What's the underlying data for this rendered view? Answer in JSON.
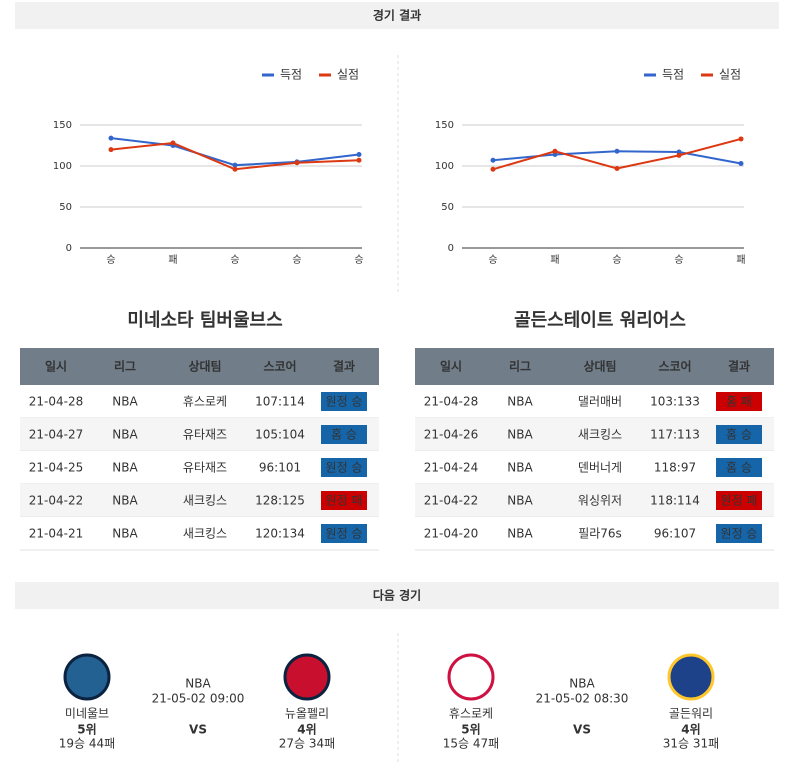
{
  "results": {
    "title": "경기 결과",
    "panels": [
      {
        "team": "미네소타 팀버울브스",
        "chart": {
          "type": "line",
          "categories": [
            "승",
            "패",
            "승",
            "승",
            "승"
          ],
          "series": [
            {
              "name": "득점",
              "color": "#3366cc",
              "values": [
                134,
                125,
                101,
                105,
                114
              ]
            },
            {
              "name": "실점",
              "color": "#dc3912",
              "values": [
                120,
                128,
                96,
                104,
                107
              ]
            }
          ],
          "ylim": [
            0,
            150
          ],
          "yticks": [
            0,
            50,
            100,
            150
          ],
          "grid": true
        },
        "table": {
          "header": [
            "일시",
            "리그",
            "상대팀",
            "스코어",
            "결과"
          ],
          "rows": [
            [
              "21-04-28",
              "NBA",
              "휴스로케",
              "107:114",
              "원정 승"
            ],
            [
              "21-04-27",
              "NBA",
              "유타재즈",
              "105:104",
              "홈 승"
            ],
            [
              "21-04-25",
              "NBA",
              "유타재즈",
              "96:101",
              "원정 승"
            ],
            [
              "21-04-22",
              "NBA",
              "새크킹스",
              "128:125",
              "원정 패"
            ],
            [
              "21-04-21",
              "NBA",
              "새크킹스",
              "120:134",
              "원정 승"
            ]
          ],
          "result_colors": [
            "#1565a8",
            "#1565a8",
            "#1565a8",
            "#cc0000",
            "#1565a8"
          ]
        }
      },
      {
        "team": "골든스테이트 워리어스",
        "chart": {
          "type": "line",
          "categories": [
            "승",
            "패",
            "승",
            "승",
            "패"
          ],
          "series": [
            {
              "name": "득점",
              "color": "#3366cc",
              "values": [
                107,
                114,
                118,
                117,
                103
              ]
            },
            {
              "name": "실점",
              "color": "#dc3912",
              "values": [
                96,
                118,
                97,
                113,
                133
              ]
            }
          ],
          "ylim": [
            0,
            150
          ],
          "yticks": [
            0,
            50,
            100,
            150
          ],
          "grid": true
        },
        "table": {
          "header": [
            "일시",
            "리그",
            "상대팀",
            "스코어",
            "결과"
          ],
          "rows": [
            [
              "21-04-28",
              "NBA",
              "댈러매버",
              "103:133",
              "홈 패"
            ],
            [
              "21-04-26",
              "NBA",
              "새크킹스",
              "117:113",
              "홈 승"
            ],
            [
              "21-04-24",
              "NBA",
              "덴버너게",
              "118:97",
              "홈 승"
            ],
            [
              "21-04-22",
              "NBA",
              "워싱위저",
              "118:114",
              "원정 패"
            ],
            [
              "21-04-20",
              "NBA",
              "필라76s",
              "96:107",
              "원정 승"
            ]
          ],
          "result_colors": [
            "#cc0000",
            "#1565a8",
            "#1565a8",
            "#cc0000",
            "#1565a8"
          ]
        }
      }
    ]
  },
  "next": {
    "title": "다음 경기",
    "games": [
      {
        "home": {
          "name": "미네울브",
          "rank": "5위",
          "record": "19승 44패"
        },
        "league": "NBA",
        "time": "21-05-02 09:00",
        "vs": "VS",
        "away": {
          "name": "뉴올펠리",
          "rank": "4위",
          "record": "27승 34패"
        }
      },
      {
        "home": {
          "name": "휴스로케",
          "rank": "5위",
          "record": "15승 47패"
        },
        "league": "NBA",
        "time": "21-05-02 08:30",
        "vs": "VS",
        "away": {
          "name": "골든워리",
          "rank": "4위",
          "record": "31승 31패"
        }
      }
    ]
  }
}
